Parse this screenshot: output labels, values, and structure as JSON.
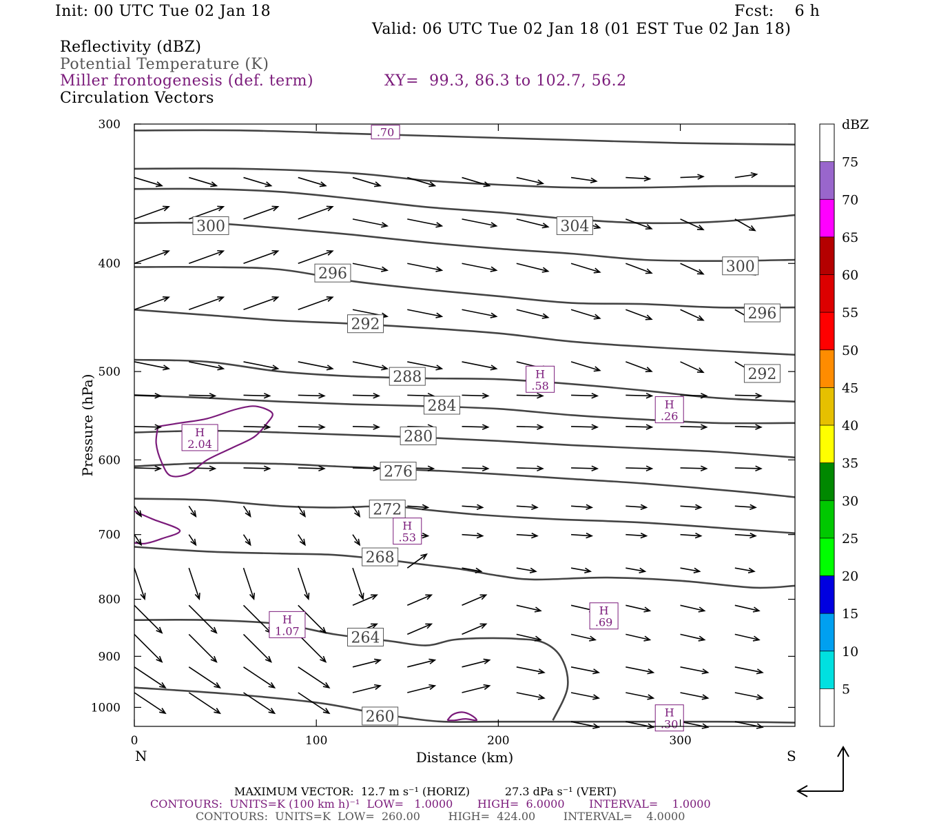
{
  "header": {
    "init": "Init: 00 UTC Tue 02 Jan 18",
    "fcst": "Fcst:    6 h",
    "valid": "Valid: 06 UTC Tue 02 Jan 18 (01 EST Tue 02 Jan 18)",
    "field1": "Reflectivity (dBZ)",
    "field2": "Potential Temperature (K)",
    "field3": "Miller frontogenesis (def. term)",
    "xy": "XY=  99.3, 86.3 to 102.7, 56.2",
    "field4": "Circulation Vectors"
  },
  "footer": {
    "maxvec": "MAXIMUM VECTOR:  12.7 m s⁻¹ (HORIZ)          27.3 dPa s⁻¹ (VERT)",
    "contours1": "CONTOURS:  UNITS=K (100 km h)⁻¹  LOW=   1.0000       HIGH=  6.0000       INTERVAL=    1.0000",
    "contours2": "CONTOURS:  UNITS=K  LOW=  260.00        HIGH=  424.00        INTERVAL=    4.0000"
  },
  "colors": {
    "theta": "#444444",
    "frontogenesis": "#7a1a7a",
    "vectors": "#000000"
  },
  "chart_data": {
    "type": "cross-section",
    "xlabel": "Distance (km)",
    "ylabel": "Pressure (hPa)",
    "xlim": [
      0,
      363
    ],
    "ylim": [
      1040,
      300
    ],
    "y_scale": "log",
    "x_ticks": [
      "0",
      "100",
      "200",
      "300"
    ],
    "y_ticks": [
      "300",
      "400",
      "500",
      "600",
      "700",
      "800",
      "900",
      "1000"
    ],
    "end_labels": {
      "left": "N",
      "right": "S"
    },
    "theta_contours": [
      {
        "label": "260",
        "pts": [
          [
            0,
            960
          ],
          [
            50,
            972
          ],
          [
            100,
            990
          ],
          [
            130,
            1010
          ],
          [
            150,
            1022
          ],
          [
            170,
            1030
          ],
          [
            200,
            1030
          ],
          [
            260,
            1030
          ],
          [
            320,
            1030
          ],
          [
            363,
            1032
          ]
        ],
        "labels_at": [
          [
            135,
            1018
          ]
        ]
      },
      {
        "label": "264",
        "pts": [
          [
            0,
            835
          ],
          [
            40,
            835
          ],
          [
            80,
            842
          ],
          [
            110,
            860
          ],
          [
            140,
            872
          ],
          [
            160,
            880
          ],
          [
            175,
            870
          ],
          [
            190,
            867
          ],
          [
            210,
            868
          ],
          [
            225,
            875
          ],
          [
            235,
            905
          ],
          [
            238,
            960
          ],
          [
            230,
            1027
          ]
        ],
        "labels_at": [
          [
            127,
            865
          ]
        ]
      },
      {
        "label": "268",
        "pts": [
          [
            0,
            718
          ],
          [
            40,
            725
          ],
          [
            80,
            728
          ],
          [
            110,
            730
          ],
          [
            140,
            738
          ],
          [
            160,
            745
          ],
          [
            180,
            752
          ],
          [
            200,
            762
          ],
          [
            220,
            768
          ],
          [
            260,
            765
          ],
          [
            300,
            770
          ],
          [
            340,
            781
          ],
          [
            363,
            778
          ]
        ],
        "labels_at": [
          [
            135,
            733
          ]
        ]
      },
      {
        "label": "272",
        "pts": [
          [
            0,
            650
          ],
          [
            40,
            652
          ],
          [
            80,
            660
          ],
          [
            110,
            662
          ],
          [
            140,
            660
          ],
          [
            160,
            665
          ],
          [
            190,
            672
          ],
          [
            230,
            678
          ],
          [
            280,
            683
          ],
          [
            330,
            692
          ],
          [
            363,
            698
          ]
        ],
        "labels_at": [
          [
            139,
            664
          ]
        ]
      },
      {
        "label": "276",
        "pts": [
          [
            0,
            608
          ],
          [
            40,
            604
          ],
          [
            80,
            605
          ],
          [
            110,
            608
          ],
          [
            140,
            611
          ],
          [
            170,
            614
          ],
          [
            200,
            618
          ],
          [
            240,
            624
          ],
          [
            280,
            630
          ],
          [
            330,
            640
          ],
          [
            363,
            648
          ]
        ],
        "labels_at": [
          [
            145,
            614
          ]
        ]
      },
      {
        "label": "280",
        "pts": [
          [
            0,
            567
          ],
          [
            40,
            565
          ],
          [
            80,
            567
          ],
          [
            120,
            570
          ],
          [
            160,
            573
          ],
          [
            200,
            577
          ],
          [
            240,
            582
          ],
          [
            280,
            586
          ],
          [
            320,
            590
          ],
          [
            363,
            597
          ]
        ],
        "labels_at": [
          [
            156,
            571
          ]
        ]
      },
      {
        "label": "284",
        "pts": [
          [
            0,
            525
          ],
          [
            40,
            528
          ],
          [
            80,
            532
          ],
          [
            120,
            535
          ],
          [
            160,
            537
          ],
          [
            200,
            540
          ],
          [
            240,
            547
          ],
          [
            280,
            552
          ],
          [
            320,
            556
          ],
          [
            363,
            556
          ]
        ],
        "labels_at": [
          [
            169,
            536
          ]
        ]
      },
      {
        "label": "288",
        "pts": [
          [
            0,
            488
          ],
          [
            40,
            490
          ],
          [
            80,
            500
          ],
          [
            120,
            505
          ],
          [
            160,
            507
          ],
          [
            200,
            508
          ],
          [
            240,
            513
          ],
          [
            280,
            520
          ],
          [
            320,
            528
          ],
          [
            363,
            532
          ]
        ],
        "labels_at": [
          [
            150,
            505
          ]
        ]
      },
      {
        "label": "292",
        "pts": [
          [
            0,
            440
          ],
          [
            40,
            445
          ],
          [
            80,
            450
          ],
          [
            120,
            453
          ],
          [
            160,
            457
          ],
          [
            200,
            462
          ],
          [
            240,
            470
          ],
          [
            280,
            475
          ],
          [
            320,
            479
          ],
          [
            363,
            483
          ]
        ],
        "labels_at": [
          [
            127,
            453
          ],
          [
            345,
            502
          ]
        ]
      },
      {
        "label": "296",
        "pts": [
          [
            0,
            403
          ],
          [
            40,
            403
          ],
          [
            80,
            405
          ],
          [
            120,
            415
          ],
          [
            160,
            422
          ],
          [
            200,
            428
          ],
          [
            240,
            434
          ],
          [
            280,
            435
          ],
          [
            320,
            438
          ],
          [
            363,
            438
          ]
        ],
        "labels_at": [
          [
            109,
            408
          ],
          [
            345,
            443
          ]
        ]
      },
      {
        "label": "300",
        "pts": [
          [
            0,
            368
          ],
          [
            40,
            368
          ],
          [
            80,
            372
          ],
          [
            120,
            377
          ],
          [
            160,
            383
          ],
          [
            200,
            388
          ],
          [
            240,
            392
          ],
          [
            280,
            397
          ],
          [
            320,
            398
          ],
          [
            363,
            397
          ]
        ],
        "labels_at": [
          [
            42,
            370
          ],
          [
            333,
            402
          ]
        ]
      },
      {
        "label": "304",
        "pts": [
          [
            0,
            343
          ],
          [
            40,
            343
          ],
          [
            80,
            345
          ],
          [
            120,
            350
          ],
          [
            160,
            356
          ],
          [
            200,
            360
          ],
          [
            240,
            365
          ],
          [
            280,
            368
          ],
          [
            320,
            367
          ],
          [
            363,
            362
          ]
        ],
        "labels_at": [
          [
            242,
            370
          ]
        ]
      },
      {
        "label": "",
        "pts": [
          [
            0,
            329
          ],
          [
            60,
            329
          ],
          [
            120,
            332
          ],
          [
            160,
            337
          ],
          [
            200,
            340
          ],
          [
            240,
            342
          ],
          [
            280,
            342
          ],
          [
            320,
            341
          ],
          [
            363,
            341
          ]
        ],
        "labels_at": []
      },
      {
        "label": "",
        "pts": [
          [
            0,
            304
          ],
          [
            60,
            304
          ],
          [
            120,
            306
          ],
          [
            180,
            308
          ],
          [
            240,
            310
          ],
          [
            300,
            312
          ],
          [
            363,
            313
          ]
        ],
        "labels_at": []
      }
    ],
    "frontogenesis_labels": [
      {
        "letter": "H",
        "value": "2.04",
        "x": 36,
        "p": 573
      },
      {
        "letter": "H",
        "value": ".53",
        "x": 150,
        "p": 695
      },
      {
        "letter": "H",
        "value": ".58",
        "x": 223,
        "p": 508
      },
      {
        "letter": "H",
        "value": ".26",
        "x": 294,
        "p": 541
      },
      {
        "letter": "H",
        "value": "1.07",
        "x": 84,
        "p": 843
      },
      {
        "letter": "H",
        "value": ".69",
        "x": 258,
        "p": 828
      },
      {
        "letter": "H",
        "value": ".30",
        "x": 294,
        "p": 1022
      },
      {
        "letter": "",
        "value": ".70",
        "x": 138,
        "p": 305
      }
    ],
    "colorbar": {
      "unit": "dBZ",
      "labels": [
        "5",
        "10",
        "15",
        "20",
        "25",
        "30",
        "35",
        "40",
        "45",
        "50",
        "55",
        "60",
        "65",
        "70",
        "75"
      ],
      "colors": [
        "#ffffff",
        "#00e0e0",
        "#00a0f0",
        "#0000e0",
        "#00ff00",
        "#00c800",
        "#008800",
        "#ffff00",
        "#e6c000",
        "#ff8c00",
        "#ff0000",
        "#dc0000",
        "#b40000",
        "#ff00ff",
        "#9966cc",
        "#ffffff"
      ]
    }
  }
}
